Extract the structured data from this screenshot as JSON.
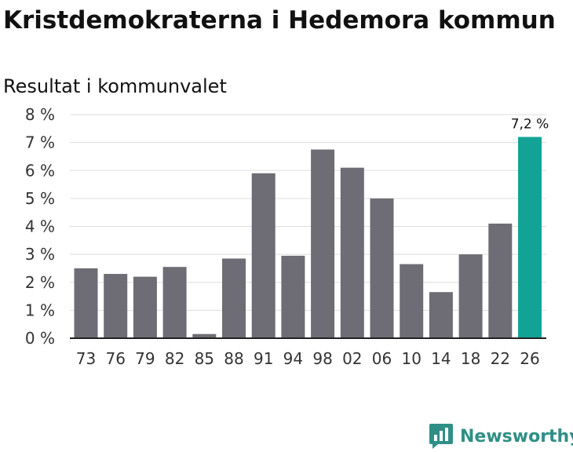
{
  "header": {
    "title": "Kristdemokraterna i Hedemora kommun",
    "subtitle": "Resultat i kommunvalet"
  },
  "brand": {
    "name": "Newsworthy",
    "icon": "bar-chart-speech-bubble-icon",
    "color": "#2f8f86"
  },
  "colors": {
    "bar": "#6e6c74",
    "highlight": "#13a396",
    "grid": "#dddddd",
    "axis": "#222222"
  },
  "chart_data": {
    "type": "bar",
    "title": "Kristdemokraterna i Hedemora kommun",
    "subtitle": "Resultat i kommunvalet",
    "categories": [
      "73",
      "76",
      "79",
      "82",
      "85",
      "88",
      "91",
      "94",
      "98",
      "02",
      "06",
      "10",
      "14",
      "18",
      "22",
      "26"
    ],
    "values": [
      2.5,
      2.3,
      2.2,
      2.55,
      0.15,
      2.85,
      5.9,
      2.95,
      6.75,
      6.1,
      5.0,
      2.65,
      1.65,
      3.0,
      4.1,
      7.2
    ],
    "highlight_index": 15,
    "data_labels": [
      {
        "index": 15,
        "text": "7,2 %"
      }
    ],
    "yticks": [
      "0 %",
      "1 %",
      "2 %",
      "3 %",
      "4 %",
      "5 %",
      "6 %",
      "7 %",
      "8 %"
    ],
    "ylim": [
      0,
      8
    ],
    "xlabel": "",
    "ylabel": "",
    "grid": true,
    "legend": "none"
  }
}
